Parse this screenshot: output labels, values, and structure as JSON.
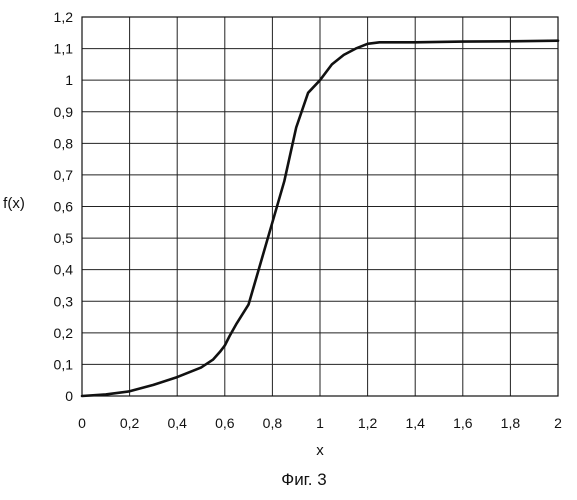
{
  "chart_data": {
    "type": "line",
    "title": "",
    "caption": "Фиг. 3",
    "xlabel": "x",
    "ylabel": "f(x)",
    "xlim": [
      0,
      2
    ],
    "ylim": [
      0,
      1.2
    ],
    "x_ticks": [
      "0",
      "0,2",
      "0,4",
      "0,6",
      "0,8",
      "1",
      "1,2",
      "1,4",
      "1,6",
      "1,8",
      "2"
    ],
    "y_ticks": [
      "0",
      "0,1",
      "0,2",
      "0,3",
      "0,4",
      "0,5",
      "0,6",
      "0,7",
      "0,8",
      "0,9",
      "1",
      "1,1",
      "1,2"
    ],
    "x_tick_values": [
      0,
      0.2,
      0.4,
      0.6,
      0.8,
      1,
      1.2,
      1.4,
      1.6,
      1.8,
      2
    ],
    "y_tick_values": [
      0,
      0.1,
      0.2,
      0.3,
      0.4,
      0.5,
      0.6,
      0.7,
      0.8,
      0.9,
      1,
      1.1,
      1.2
    ],
    "grid": true,
    "legend": "none",
    "series": [
      {
        "x": [
          0,
          0.1,
          0.2,
          0.3,
          0.4,
          0.45,
          0.5,
          0.55,
          0.58,
          0.6,
          0.62,
          0.65,
          0.7,
          0.75,
          0.8,
          0.85,
          0.9,
          0.95,
          1.0,
          1.05,
          1.1,
          1.15,
          1.2,
          1.25,
          1.3,
          1.4,
          1.6,
          1.8,
          2.0
        ],
        "y": [
          0,
          0.005,
          0.015,
          0.035,
          0.06,
          0.075,
          0.09,
          0.115,
          0.14,
          0.16,
          0.19,
          0.23,
          0.29,
          0.42,
          0.55,
          0.68,
          0.85,
          0.96,
          1.0,
          1.05,
          1.08,
          1.1,
          1.115,
          1.12,
          1.12,
          1.12,
          1.122,
          1.123,
          1.125
        ]
      }
    ]
  }
}
